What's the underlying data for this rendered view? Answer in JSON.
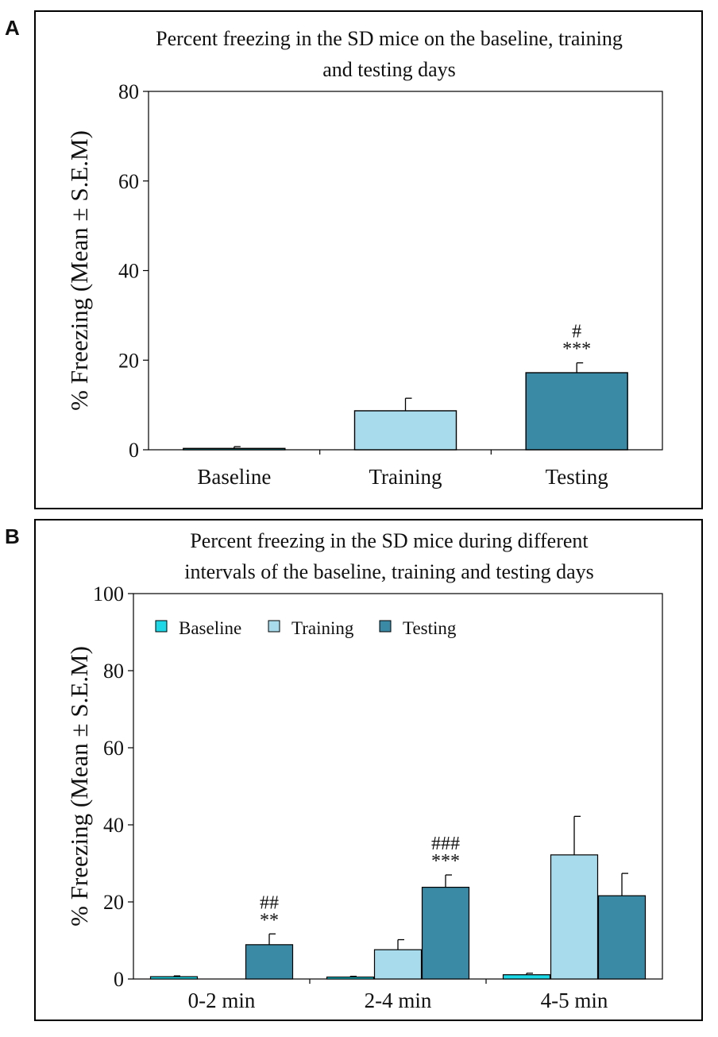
{
  "chart_data": [
    {
      "panel": "A",
      "type": "bar",
      "title_lines": [
        "Percent freezing in the SD mice on the baseline, training",
        "and testing days"
      ],
      "ylabel": "% Freezing (Mean ± S.E.M)",
      "xlabel": "",
      "ylim": [
        0,
        80
      ],
      "yticks": [
        0,
        20,
        40,
        60,
        80
      ],
      "categories": [
        "Baseline",
        "Training",
        "Testing"
      ],
      "values": [
        0.3,
        8.7,
        17.2
      ],
      "errors": [
        0.4,
        2.8,
        2.2
      ],
      "colors": [
        "#1dd8e6",
        "#a8dcec",
        "#3a8aa6"
      ],
      "annotations": [
        {
          "category": "Testing",
          "lines": [
            "#",
            "***"
          ]
        }
      ]
    },
    {
      "panel": "B",
      "type": "bar",
      "title_lines": [
        "Percent freezing in the SD mice during different",
        "intervals of the baseline, training and testing days"
      ],
      "ylabel": "% Freezing (Mean ± S.E.M)",
      "xlabel": "",
      "ylim": [
        0,
        100
      ],
      "yticks": [
        0,
        20,
        40,
        60,
        80,
        100
      ],
      "categories": [
        "0-2 min",
        "2-4 min",
        "4-5 min"
      ],
      "series": [
        {
          "name": "Baseline",
          "color": "#1dd8e6",
          "values": [
            0.6,
            0.5,
            1.1
          ],
          "errors": [
            0.2,
            0.2,
            0.4
          ]
        },
        {
          "name": "Training",
          "color": "#a8dcec",
          "values": [
            0,
            7.6,
            32.2
          ],
          "errors": [
            0,
            2.6,
            10.0
          ]
        },
        {
          "name": "Testing",
          "color": "#3a8aa6",
          "values": [
            8.9,
            23.8,
            21.6
          ],
          "errors": [
            2.8,
            3.2,
            5.8
          ]
        }
      ],
      "legend_position": "top-left",
      "annotations": [
        {
          "category": "0-2 min",
          "series": "Testing",
          "lines": [
            "##",
            "**"
          ]
        },
        {
          "category": "2-4 min",
          "series": "Testing",
          "lines": [
            "###",
            "***"
          ]
        }
      ]
    }
  ]
}
